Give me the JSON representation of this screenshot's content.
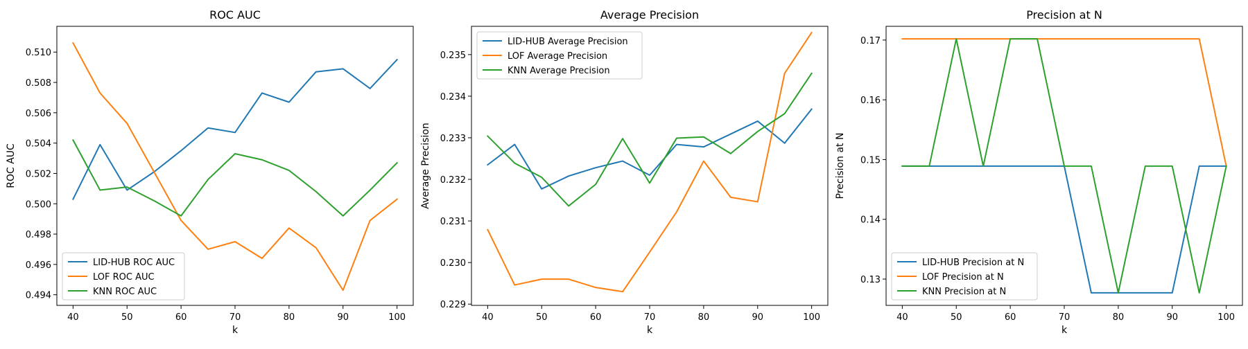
{
  "chart_data": [
    {
      "type": "line",
      "title": "ROC AUC",
      "xlabel": "k",
      "ylabel": "ROC AUC",
      "x": [
        40,
        45,
        50,
        55,
        60,
        65,
        70,
        75,
        80,
        85,
        90,
        95,
        100
      ],
      "xlim": [
        37,
        103
      ],
      "ylim": [
        0.4933,
        0.5117
      ],
      "xticks": [
        "40",
        "50",
        "60",
        "70",
        "80",
        "90",
        "100"
      ],
      "yticks": [
        "0.494",
        "0.496",
        "0.498",
        "0.500",
        "0.502",
        "0.504",
        "0.506",
        "0.508",
        "0.510"
      ],
      "grid": false,
      "legend_position": "lower-left",
      "series": [
        {
          "name": "LID-HUB ROC AUC",
          "color": "#1f77b4",
          "values": [
            0.5003,
            0.5039,
            0.5009,
            0.5021,
            0.5035,
            0.505,
            0.5047,
            0.5073,
            0.5067,
            0.5087,
            0.5089,
            0.5076,
            0.5095
          ]
        },
        {
          "name": "LOF ROC AUC",
          "color": "#ff7f0e",
          "values": [
            0.5106,
            0.5073,
            0.5053,
            0.5021,
            0.4989,
            0.497,
            0.4975,
            0.4964,
            0.4984,
            0.4971,
            0.4943,
            0.4989,
            0.5003
          ]
        },
        {
          "name": "KNN ROC AUC",
          "color": "#2ca02c",
          "values": [
            0.5042,
            0.5009,
            0.5011,
            0.5002,
            0.4992,
            0.5016,
            0.5033,
            0.5029,
            0.5022,
            0.5008,
            0.4992,
            0.5009,
            0.5027
          ]
        }
      ]
    },
    {
      "type": "line",
      "title": "Average Precision",
      "xlabel": "k",
      "ylabel": "Average Precision",
      "x": [
        40,
        45,
        50,
        55,
        60,
        65,
        70,
        75,
        80,
        85,
        90,
        95,
        100
      ],
      "xlim": [
        37,
        103
      ],
      "ylim": [
        0.22897,
        0.23568
      ],
      "xticks": [
        "40",
        "50",
        "60",
        "70",
        "80",
        "90",
        "100"
      ],
      "yticks": [
        "0.229",
        "0.230",
        "0.231",
        "0.232",
        "0.233",
        "0.234",
        "0.235"
      ],
      "grid": false,
      "legend_position": "upper-left",
      "series": [
        {
          "name": "LID-HUB Average Precision",
          "color": "#1f77b4",
          "values": [
            0.23235,
            0.23284,
            0.23177,
            0.23208,
            0.23228,
            0.23244,
            0.2321,
            0.23284,
            0.23278,
            0.23309,
            0.2334,
            0.23287,
            0.23369
          ]
        },
        {
          "name": "LOF Average Precision",
          "color": "#ff7f0e",
          "values": [
            0.23079,
            0.22946,
            0.2296,
            0.2296,
            0.2294,
            0.2293,
            0.23025,
            0.23122,
            0.23244,
            0.23157,
            0.23146,
            0.23455,
            0.23553
          ]
        },
        {
          "name": "KNN Average Precision",
          "color": "#2ca02c",
          "values": [
            0.23304,
            0.23239,
            0.23205,
            0.23136,
            0.23188,
            0.23298,
            0.23191,
            0.23299,
            0.23302,
            0.23262,
            0.23315,
            0.23358,
            0.23455
          ]
        }
      ]
    },
    {
      "type": "line",
      "title": "Precision at N",
      "xlabel": "k",
      "ylabel": "Precision at N",
      "x": [
        40,
        45,
        50,
        55,
        60,
        65,
        70,
        75,
        80,
        85,
        90,
        95,
        100
      ],
      "xlim": [
        37,
        103
      ],
      "ylim": [
        0.1256,
        0.1723
      ],
      "xticks": [
        "40",
        "50",
        "60",
        "70",
        "80",
        "90",
        "100"
      ],
      "yticks": [
        "0.13",
        "0.14",
        "0.15",
        "0.16",
        "0.17"
      ],
      "grid": false,
      "legend_position": "lower-left",
      "series": [
        {
          "name": "LID-HUB Precision at N",
          "color": "#1f77b4",
          "values": [
            0.1489,
            0.1489,
            0.1489,
            0.1489,
            0.1489,
            0.1489,
            0.1489,
            0.1277,
            0.1277,
            0.1277,
            0.1277,
            0.1489,
            0.1489
          ]
        },
        {
          "name": "LOF Precision at N",
          "color": "#ff7f0e",
          "values": [
            0.1702,
            0.1702,
            0.1702,
            0.1702,
            0.1702,
            0.1702,
            0.1702,
            0.1702,
            0.1702,
            0.1702,
            0.1702,
            0.1702,
            0.1489
          ]
        },
        {
          "name": "KNN Precision at N",
          "color": "#2ca02c",
          "values": [
            0.1489,
            0.1489,
            0.1702,
            0.1489,
            0.1702,
            0.1702,
            0.1489,
            0.1489,
            0.1277,
            0.1489,
            0.1489,
            0.1277,
            0.1489
          ]
        }
      ]
    }
  ]
}
